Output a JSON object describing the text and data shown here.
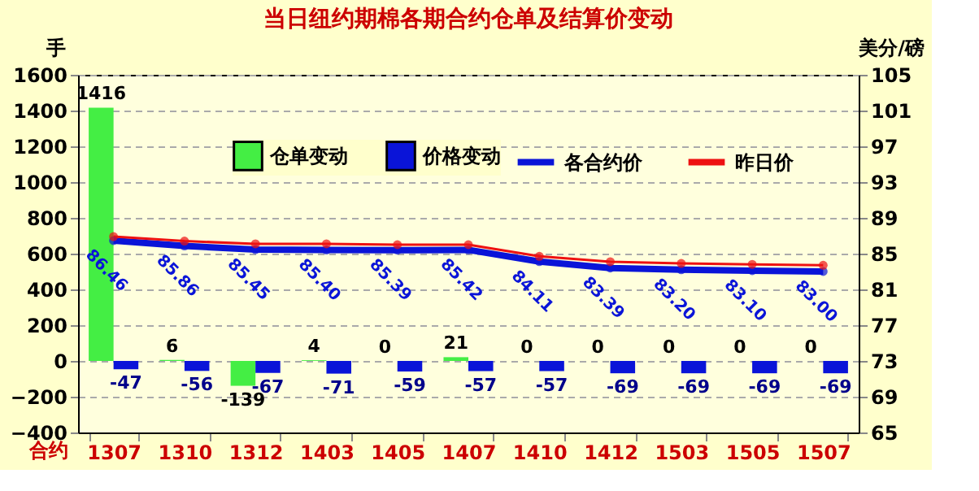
{
  "chart_data": {
    "type": "bar",
    "title": "当日纽约期棉各期合约仓单及结算价变动",
    "xlabel": "合约",
    "ylabel": "手",
    "y2label": "美分/磅",
    "categories": [
      "1307",
      "1310",
      "1312",
      "1403",
      "1405",
      "1407",
      "1410",
      "1412",
      "1503",
      "1505",
      "1507"
    ],
    "series": [
      {
        "name": "仓单变动",
        "color": "#44ee44",
        "values": [
          1416,
          6,
          -139,
          4,
          0,
          21,
          0,
          0,
          0,
          0,
          0
        ],
        "value_labels": [
          "1416",
          "6",
          "-139",
          "4",
          "0",
          "21",
          "0",
          "0",
          "0",
          "0",
          "0"
        ]
      },
      {
        "name": "价格变动",
        "color": "#0a14d8",
        "values": [
          -47,
          -56,
          -67,
          -71,
          -59,
          -57,
          -57,
          -69,
          -69,
          -69,
          -69
        ],
        "value_labels": [
          "-47",
          "-56",
          "-67",
          "-71",
          "-59",
          "-57",
          "-57",
          "-69",
          "-69",
          "-69",
          "-69"
        ]
      },
      {
        "name": "各合约价",
        "type": "line",
        "axis": "y2",
        "color": "#0a14d8",
        "marker": "circle",
        "values": [
          86.46,
          85.86,
          85.45,
          85.4,
          85.39,
          85.42,
          84.11,
          83.39,
          83.2,
          83.1,
          83.0
        ],
        "value_labels": [
          "86.46",
          "85.86",
          "85.45",
          "85.40",
          "85.39",
          "85.42",
          "84.11",
          "83.39",
          "83.20",
          "83.10",
          "83.00"
        ]
      },
      {
        "name": "昨日价",
        "type": "line",
        "axis": "y2",
        "color": "#ee1111",
        "marker": "circle",
        "values": [
          86.9,
          86.4,
          86.1,
          86.1,
          86.0,
          86.0,
          84.7,
          84.1,
          83.9,
          83.8,
          83.7
        ]
      }
    ],
    "ylim": [
      -400,
      1600
    ],
    "yticks": [
      -400,
      -200,
      0,
      200,
      400,
      600,
      800,
      1000,
      1200,
      1400,
      1600
    ],
    "y2lim": [
      65,
      105
    ],
    "y2ticks": [
      65,
      69,
      73,
      77,
      81,
      85,
      89,
      93,
      97,
      101,
      105
    ],
    "grid": "y",
    "legend": "top right"
  }
}
